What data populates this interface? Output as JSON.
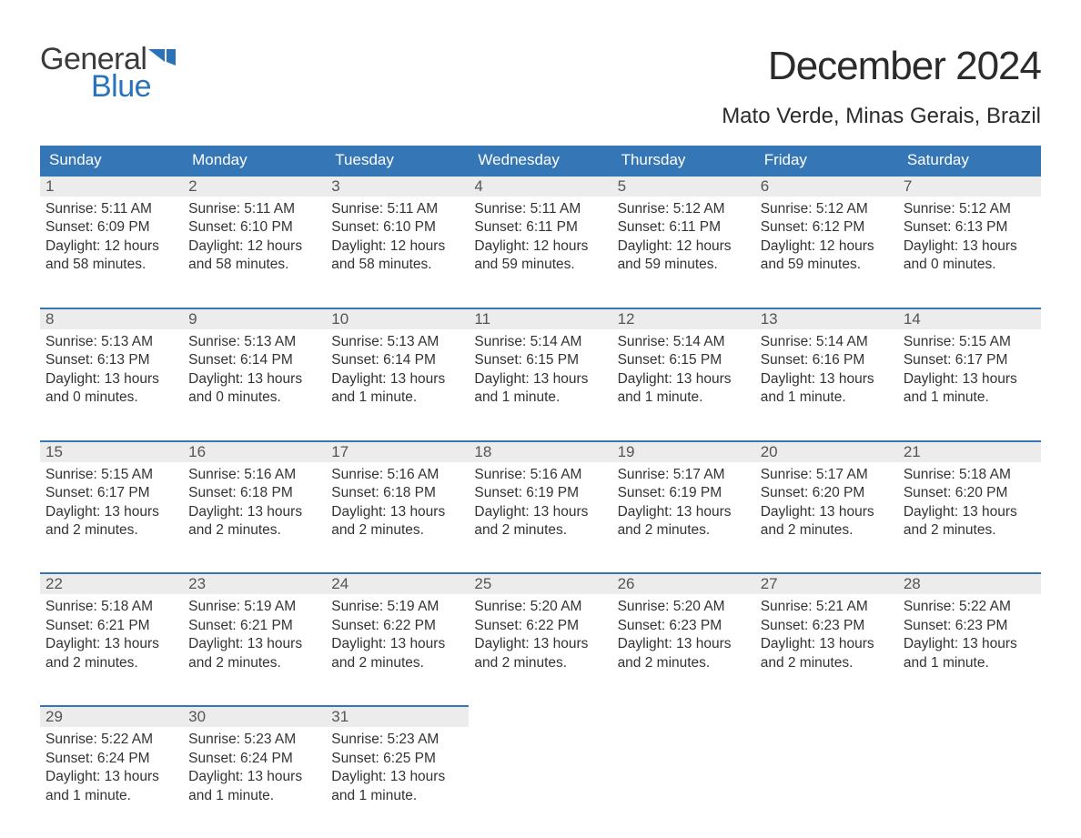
{
  "brand": {
    "general": "General",
    "blue": "Blue",
    "flag_color": "#2b73b8"
  },
  "title": "December 2024",
  "location": "Mato Verde, Minas Gerais, Brazil",
  "colors": {
    "header_bg": "#3577b6",
    "header_text": "#ffffff",
    "daynum_bg": "#ececec",
    "daynum_text": "#555555",
    "body_text": "#333333",
    "row_border": "#3577b6",
    "page_bg": "#ffffff"
  },
  "typography": {
    "title_fontsize": 44,
    "location_fontsize": 24,
    "header_fontsize": 17,
    "cell_fontsize": 15.5
  },
  "day_headers": [
    "Sunday",
    "Monday",
    "Tuesday",
    "Wednesday",
    "Thursday",
    "Friday",
    "Saturday"
  ],
  "weeks": [
    [
      {
        "n": "1",
        "sr": "Sunrise: 5:11 AM",
        "ss": "Sunset: 6:09 PM",
        "d1": "Daylight: 12 hours",
        "d2": "and 58 minutes."
      },
      {
        "n": "2",
        "sr": "Sunrise: 5:11 AM",
        "ss": "Sunset: 6:10 PM",
        "d1": "Daylight: 12 hours",
        "d2": "and 58 minutes."
      },
      {
        "n": "3",
        "sr": "Sunrise: 5:11 AM",
        "ss": "Sunset: 6:10 PM",
        "d1": "Daylight: 12 hours",
        "d2": "and 58 minutes."
      },
      {
        "n": "4",
        "sr": "Sunrise: 5:11 AM",
        "ss": "Sunset: 6:11 PM",
        "d1": "Daylight: 12 hours",
        "d2": "and 59 minutes."
      },
      {
        "n": "5",
        "sr": "Sunrise: 5:12 AM",
        "ss": "Sunset: 6:11 PM",
        "d1": "Daylight: 12 hours",
        "d2": "and 59 minutes."
      },
      {
        "n": "6",
        "sr": "Sunrise: 5:12 AM",
        "ss": "Sunset: 6:12 PM",
        "d1": "Daylight: 12 hours",
        "d2": "and 59 minutes."
      },
      {
        "n": "7",
        "sr": "Sunrise: 5:12 AM",
        "ss": "Sunset: 6:13 PM",
        "d1": "Daylight: 13 hours",
        "d2": "and 0 minutes."
      }
    ],
    [
      {
        "n": "8",
        "sr": "Sunrise: 5:13 AM",
        "ss": "Sunset: 6:13 PM",
        "d1": "Daylight: 13 hours",
        "d2": "and 0 minutes."
      },
      {
        "n": "9",
        "sr": "Sunrise: 5:13 AM",
        "ss": "Sunset: 6:14 PM",
        "d1": "Daylight: 13 hours",
        "d2": "and 0 minutes."
      },
      {
        "n": "10",
        "sr": "Sunrise: 5:13 AM",
        "ss": "Sunset: 6:14 PM",
        "d1": "Daylight: 13 hours",
        "d2": "and 1 minute."
      },
      {
        "n": "11",
        "sr": "Sunrise: 5:14 AM",
        "ss": "Sunset: 6:15 PM",
        "d1": "Daylight: 13 hours",
        "d2": "and 1 minute."
      },
      {
        "n": "12",
        "sr": "Sunrise: 5:14 AM",
        "ss": "Sunset: 6:15 PM",
        "d1": "Daylight: 13 hours",
        "d2": "and 1 minute."
      },
      {
        "n": "13",
        "sr": "Sunrise: 5:14 AM",
        "ss": "Sunset: 6:16 PM",
        "d1": "Daylight: 13 hours",
        "d2": "and 1 minute."
      },
      {
        "n": "14",
        "sr": "Sunrise: 5:15 AM",
        "ss": "Sunset: 6:17 PM",
        "d1": "Daylight: 13 hours",
        "d2": "and 1 minute."
      }
    ],
    [
      {
        "n": "15",
        "sr": "Sunrise: 5:15 AM",
        "ss": "Sunset: 6:17 PM",
        "d1": "Daylight: 13 hours",
        "d2": "and 2 minutes."
      },
      {
        "n": "16",
        "sr": "Sunrise: 5:16 AM",
        "ss": "Sunset: 6:18 PM",
        "d1": "Daylight: 13 hours",
        "d2": "and 2 minutes."
      },
      {
        "n": "17",
        "sr": "Sunrise: 5:16 AM",
        "ss": "Sunset: 6:18 PM",
        "d1": "Daylight: 13 hours",
        "d2": "and 2 minutes."
      },
      {
        "n": "18",
        "sr": "Sunrise: 5:16 AM",
        "ss": "Sunset: 6:19 PM",
        "d1": "Daylight: 13 hours",
        "d2": "and 2 minutes."
      },
      {
        "n": "19",
        "sr": "Sunrise: 5:17 AM",
        "ss": "Sunset: 6:19 PM",
        "d1": "Daylight: 13 hours",
        "d2": "and 2 minutes."
      },
      {
        "n": "20",
        "sr": "Sunrise: 5:17 AM",
        "ss": "Sunset: 6:20 PM",
        "d1": "Daylight: 13 hours",
        "d2": "and 2 minutes."
      },
      {
        "n": "21",
        "sr": "Sunrise: 5:18 AM",
        "ss": "Sunset: 6:20 PM",
        "d1": "Daylight: 13 hours",
        "d2": "and 2 minutes."
      }
    ],
    [
      {
        "n": "22",
        "sr": "Sunrise: 5:18 AM",
        "ss": "Sunset: 6:21 PM",
        "d1": "Daylight: 13 hours",
        "d2": "and 2 minutes."
      },
      {
        "n": "23",
        "sr": "Sunrise: 5:19 AM",
        "ss": "Sunset: 6:21 PM",
        "d1": "Daylight: 13 hours",
        "d2": "and 2 minutes."
      },
      {
        "n": "24",
        "sr": "Sunrise: 5:19 AM",
        "ss": "Sunset: 6:22 PM",
        "d1": "Daylight: 13 hours",
        "d2": "and 2 minutes."
      },
      {
        "n": "25",
        "sr": "Sunrise: 5:20 AM",
        "ss": "Sunset: 6:22 PM",
        "d1": "Daylight: 13 hours",
        "d2": "and 2 minutes."
      },
      {
        "n": "26",
        "sr": "Sunrise: 5:20 AM",
        "ss": "Sunset: 6:23 PM",
        "d1": "Daylight: 13 hours",
        "d2": "and 2 minutes."
      },
      {
        "n": "27",
        "sr": "Sunrise: 5:21 AM",
        "ss": "Sunset: 6:23 PM",
        "d1": "Daylight: 13 hours",
        "d2": "and 2 minutes."
      },
      {
        "n": "28",
        "sr": "Sunrise: 5:22 AM",
        "ss": "Sunset: 6:23 PM",
        "d1": "Daylight: 13 hours",
        "d2": "and 1 minute."
      }
    ],
    [
      {
        "n": "29",
        "sr": "Sunrise: 5:22 AM",
        "ss": "Sunset: 6:24 PM",
        "d1": "Daylight: 13 hours",
        "d2": "and 1 minute."
      },
      {
        "n": "30",
        "sr": "Sunrise: 5:23 AM",
        "ss": "Sunset: 6:24 PM",
        "d1": "Daylight: 13 hours",
        "d2": "and 1 minute."
      },
      {
        "n": "31",
        "sr": "Sunrise: 5:23 AM",
        "ss": "Sunset: 6:25 PM",
        "d1": "Daylight: 13 hours",
        "d2": "and 1 minute."
      },
      null,
      null,
      null,
      null
    ]
  ]
}
